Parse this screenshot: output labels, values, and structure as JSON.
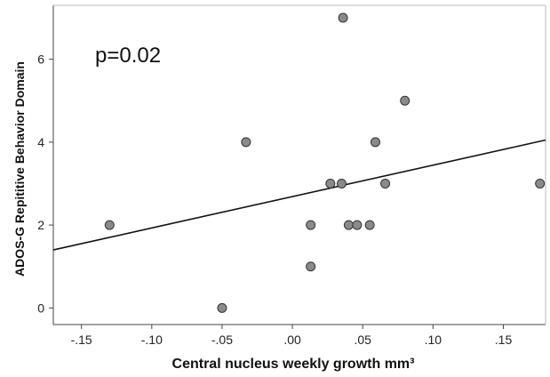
{
  "chart_data": {
    "type": "scatter",
    "title": "",
    "xlabel": "Central nucleus weekly growth mm³",
    "ylabel": "ADOS-G Repititive Behavior Domain",
    "annotation": "p=0.02",
    "xlim": [
      -0.17,
      0.18
    ],
    "ylim": [
      -0.4,
      7.3
    ],
    "x_ticks": [
      -0.15,
      -0.1,
      -0.05,
      0.0,
      0.05,
      0.1,
      0.15
    ],
    "x_tick_labels": [
      "-.15",
      "-.10",
      "-.05",
      ".00",
      ".05",
      ".10",
      ".15"
    ],
    "y_ticks": [
      0,
      2,
      4,
      6
    ],
    "y_tick_labels": [
      "0",
      "2",
      "4",
      "6"
    ],
    "grid": false,
    "points": [
      {
        "x": -0.13,
        "y": 2
      },
      {
        "x": -0.05,
        "y": 0
      },
      {
        "x": -0.033,
        "y": 4
      },
      {
        "x": 0.013,
        "y": 2
      },
      {
        "x": 0.013,
        "y": 1
      },
      {
        "x": 0.027,
        "y": 3
      },
      {
        "x": 0.035,
        "y": 3
      },
      {
        "x": 0.036,
        "y": 7
      },
      {
        "x": 0.04,
        "y": 2
      },
      {
        "x": 0.046,
        "y": 2
      },
      {
        "x": 0.055,
        "y": 2
      },
      {
        "x": 0.059,
        "y": 4
      },
      {
        "x": 0.066,
        "y": 3
      },
      {
        "x": 0.08,
        "y": 5
      },
      {
        "x": 0.176,
        "y": 3
      }
    ],
    "fit_line": {
      "x": [
        -0.17,
        0.18
      ],
      "y": [
        1.4,
        4.05
      ]
    },
    "point_color": "#8a8a8a",
    "point_edge_color": "#333333",
    "line_color": "#111111"
  }
}
